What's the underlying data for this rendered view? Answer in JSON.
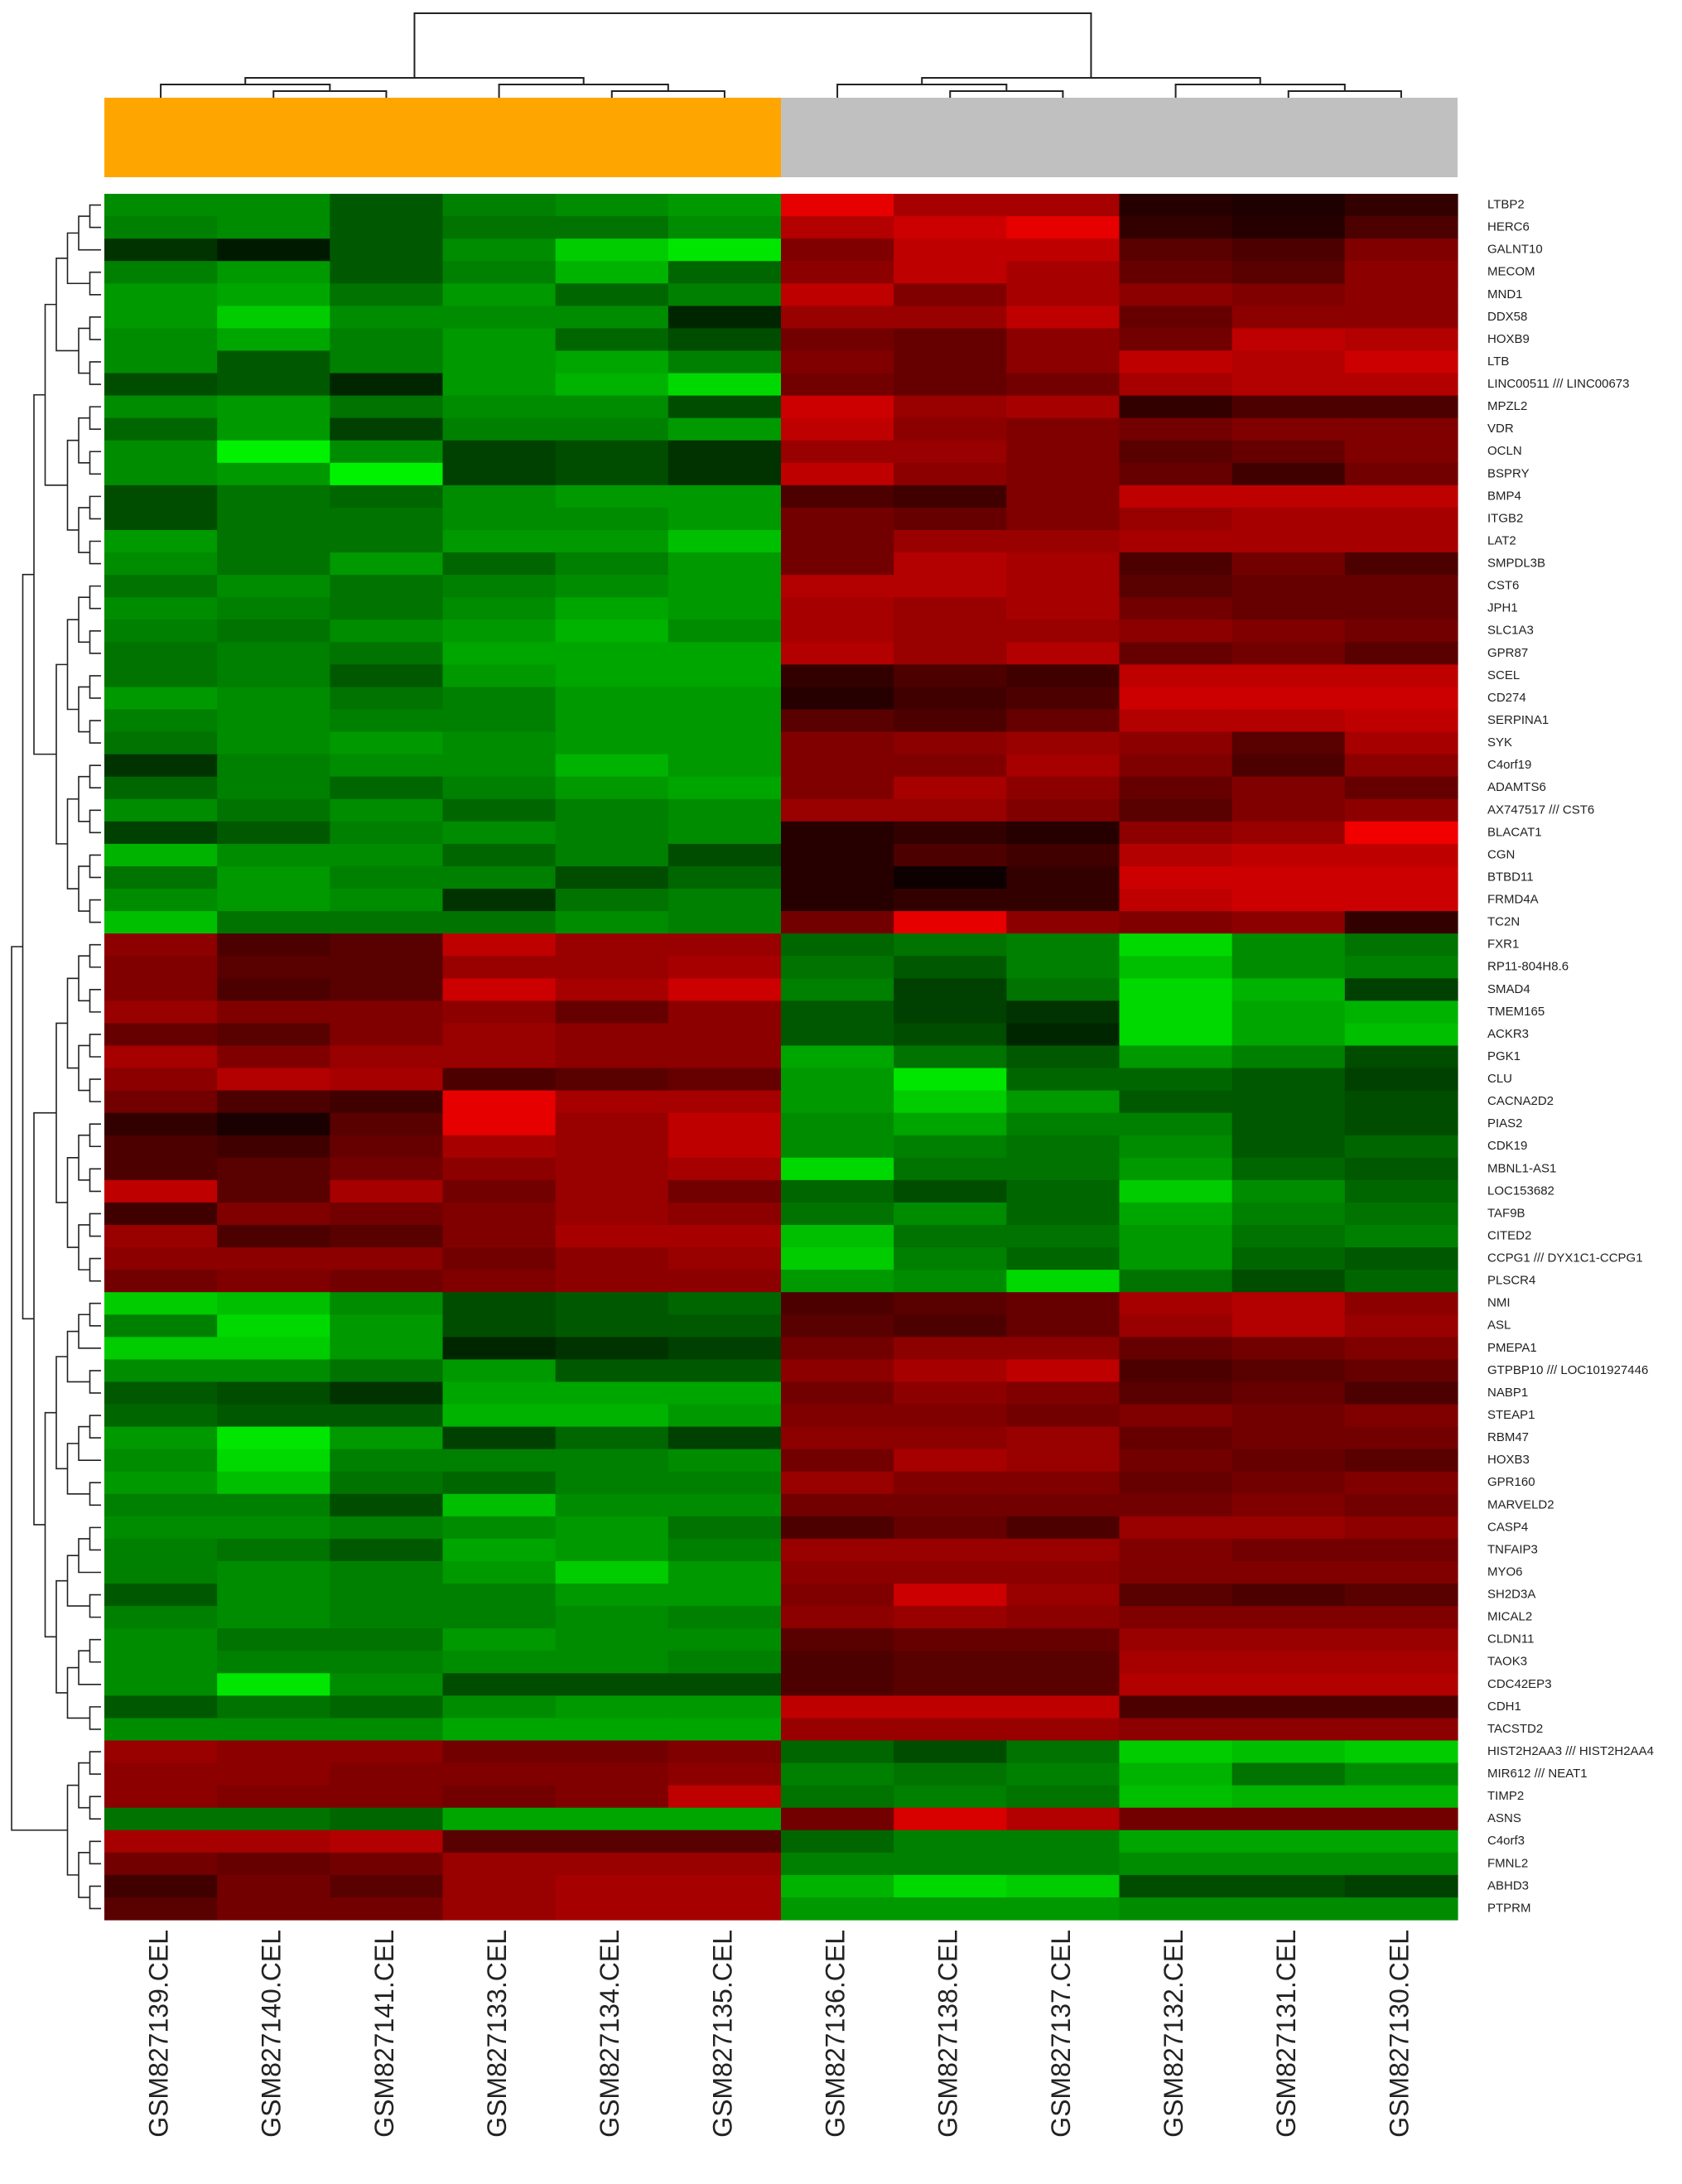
{
  "chart_data": {
    "type": "heatmap",
    "title": "",
    "xlabel": "",
    "ylabel": "",
    "columns": [
      "GSM827139.CEL",
      "GSM827140.CEL",
      "GSM827141.CEL",
      "GSM827133.CEL",
      "GSM827134.CEL",
      "GSM827135.CEL",
      "GSM827136.CEL",
      "GSM827138.CEL",
      "GSM827137.CEL",
      "GSM827132.CEL",
      "GSM827131.CEL",
      "GSM827130.CEL"
    ],
    "rows": [
      "LTBP2",
      "HERC6",
      "GALNT10",
      "MECOM",
      "MND1",
      "DDX58",
      "HOXB9",
      "LTB",
      "LINC00511 /// LINC00673",
      "MPZL2",
      "VDR",
      "OCLN",
      "BSPRY",
      "BMP4",
      "ITGB2",
      "LAT2",
      "SMPDL3B",
      "CST6",
      "JPH1",
      "SLC1A3",
      "GPR87",
      "SCEL",
      "CD274",
      "SERPINA1",
      "SYK",
      "C4orf19",
      "ADAMTS6",
      "AX747517 /// CST6",
      "BLACAT1",
      "CGN",
      "BTBD11",
      "FRMD4A",
      "TC2N",
      "FXR1",
      "RP11-804H8.6",
      "SMAD4",
      "TMEM165",
      "ACKR3",
      "PGK1",
      "CLU",
      "CACNA2D2",
      "PIAS2",
      "CDK19",
      "MBNL1-AS1",
      "LOC153682",
      "TAF9B",
      "CITED2",
      "CCPG1 /// DYX1C1-CCPG1",
      "PLSCR4",
      "NMI",
      "ASL",
      "PMEPA1",
      "GTPBP10 /// LOC101927446",
      "NABP1",
      "STEAP1",
      "RBM47",
      "HOXB3",
      "GPR160",
      "MARVELD2",
      "CASP4",
      "TNFAIP3",
      "MYO6",
      "SH2D3A",
      "MICAL2",
      "CLDN11",
      "TAOK3",
      "CDC42EP3",
      "CDH1",
      "TACSTD2",
      "HIST2H2AA3 /// HIST2H2AA4",
      "MIR612 /// NEAT1",
      "TIMP2",
      "ASNS",
      "C4orf3",
      "FMNL2",
      "ABHD3",
      "PTPRM"
    ],
    "column_groups": [
      {
        "color": "#ffa500",
        "columns": [
          0,
          1,
          2,
          3,
          4,
          5
        ]
      },
      {
        "color": "#c0c0c0",
        "columns": [
          6,
          7,
          8,
          9,
          10,
          11
        ]
      }
    ],
    "color_scale": {
      "low": "#00ff00",
      "mid": "#000000",
      "high": "#ff0000",
      "range": [
        -1,
        1
      ]
    },
    "values": [
      [
        -0.55,
        -0.55,
        -0.35,
        -0.5,
        -0.55,
        -0.6,
        0.9,
        0.65,
        0.65,
        0.15,
        0.12,
        0.2
      ],
      [
        -0.5,
        -0.55,
        -0.35,
        -0.45,
        -0.45,
        -0.55,
        0.7,
        0.8,
        0.9,
        0.2,
        0.15,
        0.3
      ],
      [
        -0.2,
        -0.1,
        -0.35,
        -0.55,
        -0.8,
        -0.9,
        0.5,
        0.75,
        0.75,
        0.35,
        0.3,
        0.5
      ],
      [
        -0.5,
        -0.6,
        -0.35,
        -0.5,
        -0.7,
        -0.4,
        0.55,
        0.75,
        0.65,
        0.4,
        0.35,
        0.55
      ],
      [
        -0.6,
        -0.65,
        -0.45,
        -0.6,
        -0.4,
        -0.5,
        0.75,
        0.5,
        0.65,
        0.55,
        0.5,
        0.55
      ],
      [
        -0.6,
        -0.8,
        -0.55,
        -0.55,
        -0.55,
        -0.15,
        0.6,
        0.6,
        0.75,
        0.4,
        0.55,
        0.55
      ],
      [
        -0.55,
        -0.65,
        -0.5,
        -0.6,
        -0.4,
        -0.3,
        0.45,
        0.4,
        0.55,
        0.45,
        0.75,
        0.7
      ],
      [
        -0.55,
        -0.35,
        -0.5,
        -0.6,
        -0.65,
        -0.5,
        0.5,
        0.4,
        0.55,
        0.75,
        0.7,
        0.8
      ],
      [
        -0.3,
        -0.35,
        -0.15,
        -0.6,
        -0.7,
        -0.85,
        0.45,
        0.4,
        0.45,
        0.65,
        0.7,
        0.7
      ],
      [
        -0.55,
        -0.6,
        -0.45,
        -0.55,
        -0.55,
        -0.3,
        0.8,
        0.6,
        0.65,
        0.2,
        0.3,
        0.3
      ],
      [
        -0.4,
        -0.6,
        -0.25,
        -0.5,
        -0.5,
        -0.6,
        0.75,
        0.55,
        0.5,
        0.45,
        0.5,
        0.5
      ],
      [
        -0.55,
        -0.95,
        -0.55,
        -0.25,
        -0.3,
        -0.2,
        0.6,
        0.6,
        0.5,
        0.35,
        0.4,
        0.5
      ],
      [
        -0.55,
        -0.6,
        -0.95,
        -0.25,
        -0.3,
        -0.2,
        0.75,
        0.55,
        0.5,
        0.4,
        0.25,
        0.45
      ],
      [
        -0.3,
        -0.45,
        -0.4,
        -0.55,
        -0.6,
        -0.6,
        0.3,
        0.25,
        0.5,
        0.75,
        0.75,
        0.75
      ],
      [
        -0.3,
        -0.45,
        -0.45,
        -0.55,
        -0.55,
        -0.6,
        0.45,
        0.4,
        0.5,
        0.6,
        0.65,
        0.65
      ],
      [
        -0.6,
        -0.45,
        -0.45,
        -0.6,
        -0.6,
        -0.75,
        0.45,
        0.6,
        0.6,
        0.65,
        0.65,
        0.65
      ],
      [
        -0.55,
        -0.45,
        -0.6,
        -0.4,
        -0.5,
        -0.6,
        0.45,
        0.7,
        0.65,
        0.3,
        0.45,
        0.3
      ],
      [
        -0.45,
        -0.55,
        -0.45,
        -0.5,
        -0.55,
        -0.6,
        0.7,
        0.7,
        0.65,
        0.35,
        0.4,
        0.4
      ],
      [
        -0.55,
        -0.5,
        -0.45,
        -0.55,
        -0.65,
        -0.6,
        0.65,
        0.6,
        0.65,
        0.45,
        0.4,
        0.4
      ],
      [
        -0.5,
        -0.45,
        -0.55,
        -0.6,
        -0.7,
        -0.55,
        0.65,
        0.6,
        0.6,
        0.55,
        0.5,
        0.45
      ],
      [
        -0.45,
        -0.5,
        -0.45,
        -0.65,
        -0.65,
        -0.65,
        0.7,
        0.6,
        0.7,
        0.4,
        0.45,
        0.35
      ],
      [
        -0.45,
        -0.5,
        -0.35,
        -0.6,
        -0.65,
        -0.65,
        0.2,
        0.3,
        0.25,
        0.75,
        0.75,
        0.75
      ],
      [
        -0.6,
        -0.55,
        -0.45,
        -0.5,
        -0.6,
        -0.6,
        0.15,
        0.25,
        0.3,
        0.8,
        0.8,
        0.8
      ],
      [
        -0.5,
        -0.55,
        -0.5,
        -0.5,
        -0.6,
        -0.6,
        0.35,
        0.3,
        0.4,
        0.7,
        0.7,
        0.75
      ],
      [
        -0.45,
        -0.55,
        -0.6,
        -0.55,
        -0.6,
        -0.6,
        0.5,
        0.55,
        0.6,
        0.55,
        0.35,
        0.65
      ],
      [
        -0.2,
        -0.5,
        -0.55,
        -0.55,
        -0.7,
        -0.6,
        0.5,
        0.5,
        0.65,
        0.5,
        0.3,
        0.55
      ],
      [
        -0.4,
        -0.5,
        -0.4,
        -0.5,
        -0.6,
        -0.65,
        0.5,
        0.65,
        0.55,
        0.4,
        0.5,
        0.4
      ],
      [
        -0.55,
        -0.45,
        -0.55,
        -0.4,
        -0.5,
        -0.55,
        0.6,
        0.6,
        0.5,
        0.35,
        0.5,
        0.55
      ],
      [
        -0.25,
        -0.35,
        -0.5,
        -0.55,
        -0.5,
        -0.55,
        0.15,
        0.2,
        0.15,
        0.55,
        0.6,
        0.95
      ],
      [
        -0.7,
        -0.55,
        -0.55,
        -0.4,
        -0.5,
        -0.3,
        0.15,
        0.3,
        0.25,
        0.7,
        0.75,
        0.75
      ],
      [
        -0.45,
        -0.6,
        -0.5,
        -0.5,
        -0.3,
        -0.4,
        0.15,
        0.05,
        0.2,
        0.8,
        0.8,
        0.8
      ],
      [
        -0.55,
        -0.6,
        -0.55,
        -0.2,
        -0.45,
        -0.5,
        0.15,
        0.2,
        0.2,
        0.75,
        0.8,
        0.8
      ],
      [
        -0.75,
        -0.45,
        -0.45,
        -0.45,
        -0.55,
        -0.5,
        0.45,
        0.9,
        0.55,
        0.5,
        0.55,
        0.2
      ],
      [
        0.55,
        0.3,
        0.35,
        0.75,
        0.6,
        0.6,
        -0.4,
        -0.45,
        -0.5,
        -0.85,
        -0.55,
        -0.45
      ],
      [
        0.5,
        0.35,
        0.35,
        0.6,
        0.6,
        0.65,
        -0.45,
        -0.35,
        -0.5,
        -0.75,
        -0.55,
        -0.5
      ],
      [
        0.5,
        0.3,
        0.35,
        0.8,
        0.65,
        0.8,
        -0.5,
        -0.25,
        -0.45,
        -0.85,
        -0.7,
        -0.25
      ],
      [
        0.6,
        0.5,
        0.5,
        0.55,
        0.4,
        0.55,
        -0.35,
        -0.25,
        -0.2,
        -0.85,
        -0.65,
        -0.7
      ],
      [
        0.4,
        0.35,
        0.5,
        0.6,
        0.55,
        0.55,
        -0.35,
        -0.3,
        -0.15,
        -0.85,
        -0.65,
        -0.75
      ],
      [
        0.65,
        0.5,
        0.6,
        0.6,
        0.55,
        0.55,
        -0.65,
        -0.45,
        -0.35,
        -0.6,
        -0.5,
        -0.3
      ],
      [
        0.55,
        0.7,
        0.65,
        0.3,
        0.35,
        0.4,
        -0.6,
        -0.9,
        -0.4,
        -0.4,
        -0.35,
        -0.25
      ],
      [
        0.45,
        0.3,
        0.25,
        0.9,
        0.65,
        0.65,
        -0.6,
        -0.8,
        -0.6,
        -0.35,
        -0.35,
        -0.3
      ],
      [
        0.2,
        0.1,
        0.35,
        0.9,
        0.6,
        0.75,
        -0.55,
        -0.65,
        -0.5,
        -0.5,
        -0.35,
        -0.3
      ],
      [
        0.3,
        0.25,
        0.4,
        0.65,
        0.6,
        0.75,
        -0.55,
        -0.5,
        -0.45,
        -0.55,
        -0.35,
        -0.4
      ],
      [
        0.3,
        0.35,
        0.45,
        0.55,
        0.6,
        0.65,
        -0.85,
        -0.45,
        -0.45,
        -0.6,
        -0.4,
        -0.35
      ],
      [
        0.75,
        0.35,
        0.65,
        0.45,
        0.6,
        0.45,
        -0.4,
        -0.3,
        -0.4,
        -0.8,
        -0.55,
        -0.4
      ],
      [
        0.25,
        0.5,
        0.45,
        0.5,
        0.6,
        0.55,
        -0.45,
        -0.55,
        -0.4,
        -0.65,
        -0.5,
        -0.45
      ],
      [
        0.6,
        0.3,
        0.35,
        0.5,
        0.65,
        0.65,
        -0.75,
        -0.45,
        -0.45,
        -0.6,
        -0.45,
        -0.5
      ],
      [
        0.55,
        0.55,
        0.55,
        0.45,
        0.55,
        0.6,
        -0.8,
        -0.5,
        -0.4,
        -0.6,
        -0.4,
        -0.35
      ],
      [
        0.45,
        0.5,
        0.45,
        0.5,
        0.55,
        0.55,
        -0.6,
        -0.55,
        -0.85,
        -0.45,
        -0.3,
        -0.4
      ],
      [
        -0.8,
        -0.75,
        -0.55,
        -0.3,
        -0.35,
        -0.4,
        0.3,
        0.35,
        0.4,
        0.65,
        0.7,
        0.55
      ],
      [
        -0.5,
        -0.85,
        -0.6,
        -0.3,
        -0.35,
        -0.35,
        0.35,
        0.3,
        0.4,
        0.6,
        0.7,
        0.6
      ],
      [
        -0.8,
        -0.8,
        -0.6,
        -0.15,
        -0.2,
        -0.25,
        0.45,
        0.55,
        0.55,
        0.4,
        0.45,
        0.5
      ],
      [
        -0.55,
        -0.55,
        -0.45,
        -0.6,
        -0.35,
        -0.35,
        0.55,
        0.65,
        0.75,
        0.3,
        0.35,
        0.4
      ],
      [
        -0.35,
        -0.3,
        -0.2,
        -0.65,
        -0.65,
        -0.65,
        0.45,
        0.55,
        0.5,
        0.35,
        0.4,
        0.3
      ],
      [
        -0.4,
        -0.35,
        -0.35,
        -0.7,
        -0.7,
        -0.6,
        0.5,
        0.5,
        0.45,
        0.5,
        0.45,
        0.5
      ],
      [
        -0.6,
        -0.9,
        -0.6,
        -0.25,
        -0.4,
        -0.25,
        0.55,
        0.55,
        0.6,
        0.4,
        0.45,
        0.45
      ],
      [
        -0.55,
        -0.85,
        -0.5,
        -0.5,
        -0.5,
        -0.55,
        0.45,
        0.65,
        0.6,
        0.45,
        0.4,
        0.35
      ],
      [
        -0.6,
        -0.75,
        -0.45,
        -0.4,
        -0.5,
        -0.5,
        0.6,
        0.5,
        0.5,
        0.4,
        0.45,
        0.5
      ],
      [
        -0.5,
        -0.5,
        -0.3,
        -0.75,
        -0.55,
        -0.55,
        0.45,
        0.45,
        0.45,
        0.45,
        0.5,
        0.45
      ],
      [
        -0.55,
        -0.55,
        -0.5,
        -0.55,
        -0.6,
        -0.45,
        0.3,
        0.4,
        0.3,
        0.6,
        0.6,
        0.55
      ],
      [
        -0.5,
        -0.45,
        -0.35,
        -0.65,
        -0.6,
        -0.5,
        0.6,
        0.6,
        0.6,
        0.5,
        0.45,
        0.45
      ],
      [
        -0.5,
        -0.55,
        -0.5,
        -0.6,
        -0.8,
        -0.6,
        0.55,
        0.55,
        0.55,
        0.5,
        0.5,
        0.5
      ],
      [
        -0.35,
        -0.55,
        -0.5,
        -0.5,
        -0.6,
        -0.6,
        0.5,
        0.8,
        0.6,
        0.35,
        0.3,
        0.35
      ],
      [
        -0.5,
        -0.55,
        -0.5,
        -0.5,
        -0.55,
        -0.5,
        0.55,
        0.6,
        0.55,
        0.5,
        0.5,
        0.5
      ],
      [
        -0.55,
        -0.45,
        -0.45,
        -0.6,
        -0.55,
        -0.55,
        0.35,
        0.4,
        0.4,
        0.6,
        0.6,
        0.6
      ],
      [
        -0.55,
        -0.5,
        -0.5,
        -0.55,
        -0.55,
        -0.5,
        0.3,
        0.35,
        0.35,
        0.65,
        0.65,
        0.65
      ],
      [
        -0.55,
        -0.9,
        -0.55,
        -0.3,
        -0.3,
        -0.3,
        0.3,
        0.35,
        0.35,
        0.7,
        0.7,
        0.7
      ],
      [
        -0.35,
        -0.45,
        -0.4,
        -0.55,
        -0.6,
        -0.6,
        0.75,
        0.75,
        0.75,
        0.3,
        0.3,
        0.3
      ],
      [
        -0.55,
        -0.55,
        -0.55,
        -0.65,
        -0.65,
        -0.65,
        0.6,
        0.6,
        0.6,
        0.55,
        0.55,
        0.55
      ],
      [
        0.6,
        0.55,
        0.55,
        0.45,
        0.45,
        0.5,
        -0.4,
        -0.3,
        -0.45,
        -0.8,
        -0.75,
        -0.8
      ],
      [
        0.55,
        0.55,
        0.5,
        0.5,
        0.5,
        0.55,
        -0.5,
        -0.45,
        -0.5,
        -0.7,
        -0.45,
        -0.55
      ],
      [
        0.55,
        0.5,
        0.5,
        0.45,
        0.5,
        0.75,
        -0.45,
        -0.5,
        -0.45,
        -0.75,
        -0.7,
        -0.7
      ],
      [
        -0.45,
        -0.45,
        -0.4,
        -0.65,
        -0.65,
        -0.65,
        0.45,
        0.85,
        0.7,
        0.45,
        0.45,
        0.45
      ],
      [
        0.65,
        0.65,
        0.7,
        0.35,
        0.35,
        0.35,
        -0.4,
        -0.5,
        -0.5,
        -0.65,
        -0.65,
        -0.65
      ],
      [
        0.45,
        0.4,
        0.45,
        0.6,
        0.6,
        0.6,
        -0.5,
        -0.5,
        -0.5,
        -0.55,
        -0.55,
        -0.55
      ],
      [
        0.25,
        0.45,
        0.35,
        0.6,
        0.65,
        0.65,
        -0.7,
        -0.85,
        -0.8,
        -0.3,
        -0.3,
        -0.25
      ],
      [
        0.35,
        0.45,
        0.45,
        0.6,
        0.65,
        0.65,
        -0.6,
        -0.6,
        -0.6,
        -0.55,
        -0.55,
        -0.55
      ]
    ]
  }
}
